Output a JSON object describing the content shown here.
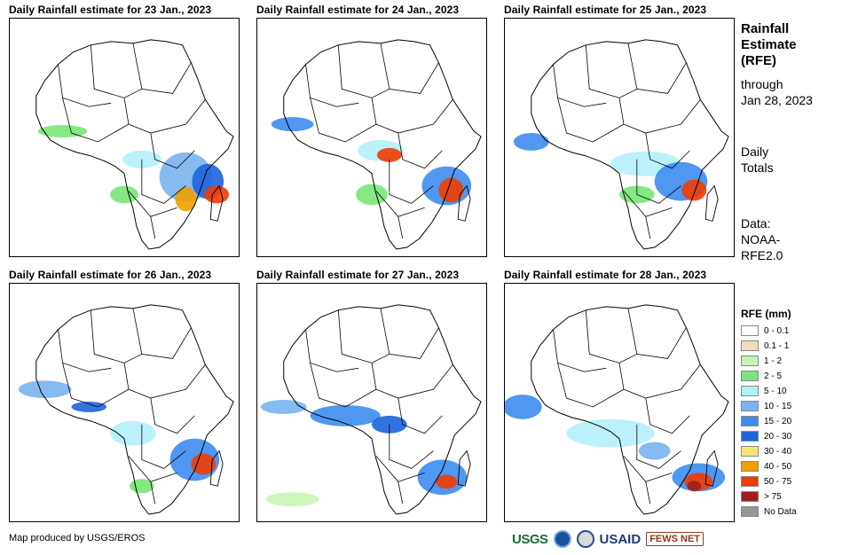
{
  "chart_data": {
    "type": "map",
    "panels": [
      {
        "title": "Daily Rainfall estimate for 23 Jan., 2023"
      },
      {
        "title": "Daily Rainfall estimate for 24 Jan., 2023"
      },
      {
        "title": "Daily Rainfall estimate for 25 Jan., 2023"
      },
      {
        "title": "Daily Rainfall estimate for 26 Jan., 2023"
      },
      {
        "title": "Daily Rainfall estimate for 27 Jan., 2023"
      },
      {
        "title": "Daily Rainfall estimate for 28 Jan., 2023"
      }
    ],
    "side_text": {
      "heading": [
        "Rainfall",
        "Estimate",
        "(RFE)"
      ],
      "through": "through",
      "date": "Jan 28, 2023",
      "totals": [
        "Daily",
        "Totals"
      ],
      "data_src": [
        "Data:",
        "NOAA-",
        "RFE2.0"
      ]
    },
    "legend": {
      "title": "RFE (mm)",
      "items": [
        {
          "label": "0 - 0.1",
          "color": "#ffffff"
        },
        {
          "label": "0.1 - 1",
          "color": "#f0dcc0"
        },
        {
          "label": "1 - 2",
          "color": "#c8f5b4"
        },
        {
          "label": "2 - 5",
          "color": "#78e678"
        },
        {
          "label": "5 - 10",
          "color": "#b4f0fa"
        },
        {
          "label": "10 - 15",
          "color": "#78b4f0"
        },
        {
          "label": "15 - 20",
          "color": "#3c8cf0"
        },
        {
          "label": "20 - 30",
          "color": "#1e64dc"
        },
        {
          "label": "30 - 40",
          "color": "#fae678"
        },
        {
          "label": "40 - 50",
          "color": "#f0a000"
        },
        {
          "label": "50 - 75",
          "color": "#f03c00"
        },
        {
          "label": "> 75",
          "color": "#a01e1e"
        },
        {
          "label": "No Data",
          "color": "#969696"
        }
      ]
    }
  },
  "footer": {
    "credit": "Map produced by USGS/EROS",
    "logos": {
      "usgs": "USGS",
      "usaid": "USAID",
      "fews": "FEWS NET"
    }
  }
}
